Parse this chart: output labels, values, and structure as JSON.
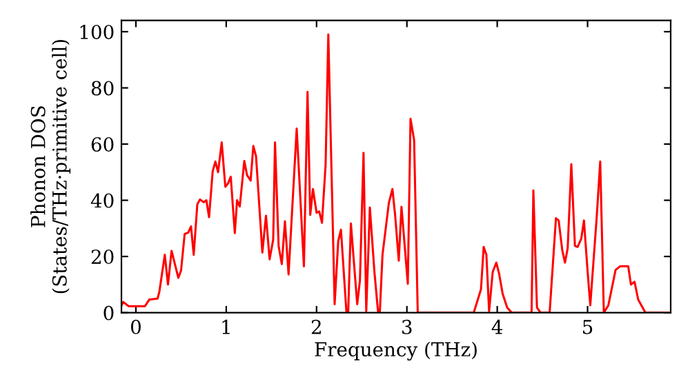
{
  "chart_data": {
    "type": "line",
    "xlabel": "Frequency (THz)",
    "ylabel": "Phonon DOS\n(States/THz·primitive cell)",
    "xlim": [
      -0.16,
      5.92
    ],
    "ylim": [
      0,
      104
    ],
    "xticks": [
      0,
      1,
      2,
      3,
      4,
      5
    ],
    "yticks": [
      0,
      20,
      40,
      60,
      80,
      100
    ],
    "grid": false,
    "series": [
      {
        "color": "#ff0000",
        "x": [
          -0.16,
          -0.14,
          -0.08,
          0.1,
          0.15,
          0.24,
          0.26,
          0.32,
          0.355,
          0.395,
          0.47,
          0.5,
          0.54,
          0.58,
          0.61,
          0.64,
          0.68,
          0.71,
          0.75,
          0.78,
          0.81,
          0.85,
          0.88,
          0.91,
          0.95,
          0.99,
          1.02,
          1.05,
          1.095,
          1.12,
          1.15,
          1.2,
          1.23,
          1.27,
          1.3,
          1.33,
          1.4,
          1.44,
          1.48,
          1.52,
          1.54,
          1.58,
          1.615,
          1.65,
          1.69,
          1.78,
          1.86,
          1.9,
          1.93,
          1.96,
          2.0,
          2.03,
          2.06,
          2.1,
          2.13,
          2.2,
          2.24,
          2.27,
          2.33,
          2.35,
          2.38,
          2.45,
          2.48,
          2.52,
          2.55,
          2.59,
          2.64,
          2.68,
          2.7,
          2.73,
          2.8,
          2.84,
          2.87,
          2.91,
          2.94,
          3.01,
          3.04,
          3.08,
          3.12,
          3.74,
          3.82,
          3.85,
          3.88,
          3.91,
          3.95,
          3.99,
          4.02,
          4.06,
          4.11,
          4.16,
          4.38,
          4.4,
          4.44,
          4.48,
          4.58,
          4.65,
          4.68,
          4.72,
          4.75,
          4.78,
          4.82,
          4.86,
          4.89,
          4.93,
          4.96,
          5.0,
          5.03,
          5.1,
          5.14,
          5.18,
          5.23,
          5.31,
          5.36,
          5.45,
          5.48,
          5.52,
          5.56,
          5.64,
          5.92
        ],
        "values": [
          2.5,
          3.8,
          2.3,
          2.3,
          4.7,
          5,
          7.5,
          20.6,
          10,
          22,
          12.4,
          15,
          28,
          28.5,
          30.7,
          20.6,
          38.6,
          40.3,
          39.3,
          40,
          34,
          50.3,
          53.8,
          50,
          60.6,
          44.8,
          46,
          48.4,
          28.3,
          40,
          37.8,
          54,
          49,
          47,
          59.3,
          55.7,
          21.4,
          34.5,
          19,
          26,
          60.6,
          23.7,
          17.3,
          32.5,
          13.6,
          65.5,
          16.5,
          78.6,
          34.8,
          44,
          35.6,
          36,
          32,
          52.6,
          99,
          3,
          25.5,
          29.5,
          0.5,
          0,
          31.7,
          3,
          11.4,
          56.9,
          0.5,
          37.4,
          14.7,
          0.5,
          0,
          20.6,
          39,
          44,
          34.6,
          18.5,
          37.7,
          10.3,
          69,
          61.4,
          0,
          0,
          8.3,
          23.4,
          20.6,
          0.5,
          14.5,
          17.8,
          14,
          6.7,
          1.8,
          0,
          0,
          43.5,
          1.8,
          0,
          0,
          33.6,
          32.8,
          22.2,
          17.8,
          23,
          52.8,
          23.8,
          23.4,
          26.3,
          32.8,
          14.8,
          2.6,
          33.5,
          53.8,
          0,
          2.6,
          15.2,
          16.5,
          16.5,
          10,
          11,
          4.7,
          0,
          0
        ]
      }
    ]
  }
}
